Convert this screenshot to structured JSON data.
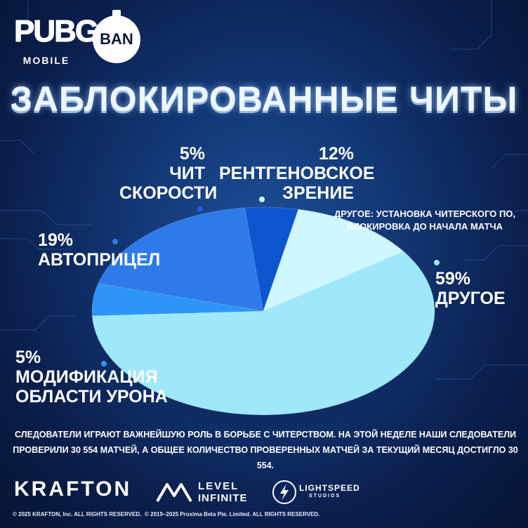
{
  "brand": {
    "pubg": "PUBG",
    "pubg_sub": "MOBILE",
    "ban": "BAN"
  },
  "title": "ЗАБЛОКИРОВАННЫЕ ЧИТЫ",
  "chart_data": {
    "type": "pie",
    "title": "ЗАБЛОКИРОВАННЫЕ ЧИТЫ",
    "slices": [
      {
        "label": "ДРУГОЕ",
        "value": 59,
        "pct": "59%",
        "color": "#9fe8fb"
      },
      {
        "label": "МОДИФИКАЦИЯ ОБЛАСТИ УРОНА",
        "value": 5,
        "pct": "5%",
        "color": "#2d95f5"
      },
      {
        "label": "АВТОПРИЦЕЛ",
        "value": 19,
        "pct": "19%",
        "color": "#2e7ae8"
      },
      {
        "label": "ЧИТ СКОРОСТИ",
        "value": 5,
        "pct": "5%",
        "color": "#0e55d0"
      },
      {
        "label": "РЕНТГЕНОВСКОЕ ЗРЕНИЕ",
        "value": 12,
        "pct": "12%",
        "color": "#cff7ff"
      }
    ],
    "labels": {
      "other_pct": "59%",
      "other": "ДРУГОЕ",
      "dmg_pct": "5%",
      "dmg_1": "МОДИФИКАЦИЯ",
      "dmg_2": "ОБЛАСТИ УРОНА",
      "aim_pct": "19%",
      "aim": "АВТОПРИЦЕЛ",
      "speed_pct": "5%",
      "speed_1": "ЧИТ",
      "speed_2": "СКОРОСТИ",
      "xray_pct": "12%",
      "xray_1": "РЕНТГЕНОВСКОЕ",
      "xray_2": "ЗРЕНИЕ"
    },
    "note_1": "ДРУГОЕ: УСТАНОВКА ЧИТЕРСКОГО ПО,",
    "note_2": "БЛОКИРОВКА ДО НАЧАЛА МАТЧА"
  },
  "description_1": "СЛЕДОВАТЕЛИ ИГРАЮТ ВАЖНЕЙШУЮ РОЛЬ В БОРЬБЕ С ЧИТЕРСТВОМ. НА ЭТОЙ НЕДЕЛЕ НАШИ СЛЕДОВАТЕЛИ",
  "description_2": "ПРОВЕРИЛИ 30 554 МАТЧЕЙ, А ОБЩЕЕ КОЛИЧЕСТВО ПРОВЕРЕННЫХ МАТЧЕЙ ЗА ТЕКУЩИЙ МЕСЯЦ ДОСТИГЛО 30 554.",
  "footer": {
    "krafton": "KRAFTON",
    "level_1": "LEVEL",
    "level_2": "INFINITE",
    "lightspeed_1": "LIGHTSPEED",
    "lightspeed_2": "STUDIOS",
    "copy_1": "© 2025 KRAFTON, Inc. ALL RIGHTS RESERVED.",
    "copy_2": "© 2019–2025 Proxima Beta Pte. Limited. ALL RIGHTS RESERVED."
  }
}
